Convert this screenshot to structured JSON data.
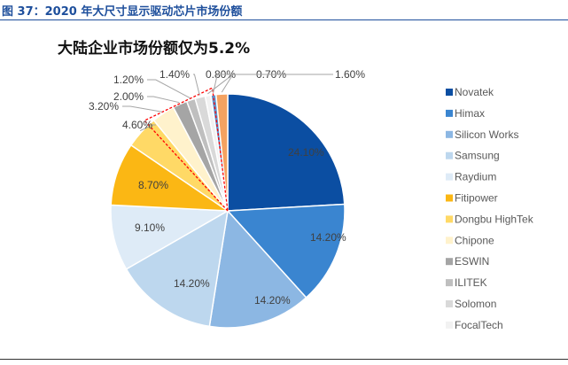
{
  "figure_title": "图 37：2020 年大尺寸显示驱动芯片市场份额",
  "chart_data": {
    "type": "pie",
    "title": "大陆企业市场份额仅为5.2%",
    "start": "12 o'clock, clockwise",
    "legend_position": "right",
    "slices": [
      {
        "name": "Novatek",
        "value": 24.1,
        "label": "24.10%",
        "color": "#0b4ea2"
      },
      {
        "name": "Himax",
        "value": 14.2,
        "label": "14.20%",
        "color": "#3a85d0"
      },
      {
        "name": "Silicon Works",
        "value": 14.2,
        "label": "14.20%",
        "color": "#8cb7e3"
      },
      {
        "name": "Samsung",
        "value": 14.2,
        "label": "14.20%",
        "color": "#bdd7ee"
      },
      {
        "name": "Raydium",
        "value": 9.1,
        "label": "9.10%",
        "color": "#deebf7"
      },
      {
        "name": "Fitipower",
        "value": 8.7,
        "label": "8.70%",
        "color": "#fbb714"
      },
      {
        "name": "Dongbu HighTek",
        "value": 4.6,
        "label": "4.60%",
        "color": "#ffd966"
      },
      {
        "name": "Chipone",
        "value": 3.2,
        "label": "3.20%",
        "color": "#fff2cc"
      },
      {
        "name": "ESWIN",
        "value": 2.0,
        "label": "2.00%",
        "color": "#a5a5a5"
      },
      {
        "name": "ILITEK",
        "value": 1.2,
        "label": "1.20%",
        "color": "#bfbfbf"
      },
      {
        "name": "Solomon",
        "value": 1.4,
        "label": "1.40%",
        "color": "#d9d9d9"
      },
      {
        "name": "FocalTech",
        "value": 0.8,
        "label": "0.80%",
        "color": "#f2f2f2"
      },
      {
        "name": "",
        "value": 0.7,
        "label": "0.70%",
        "color": "#5b9bd5"
      },
      {
        "name": "",
        "value": 1.6,
        "label": "1.60%",
        "color": "#f4a261"
      }
    ],
    "highlight": {
      "style": "red dashed outline",
      "color": "#ff0000",
      "covers": [
        "Chipone",
        "ESWIN",
        "ILITEK",
        "Solomon",
        "FocalTech"
      ]
    }
  }
}
